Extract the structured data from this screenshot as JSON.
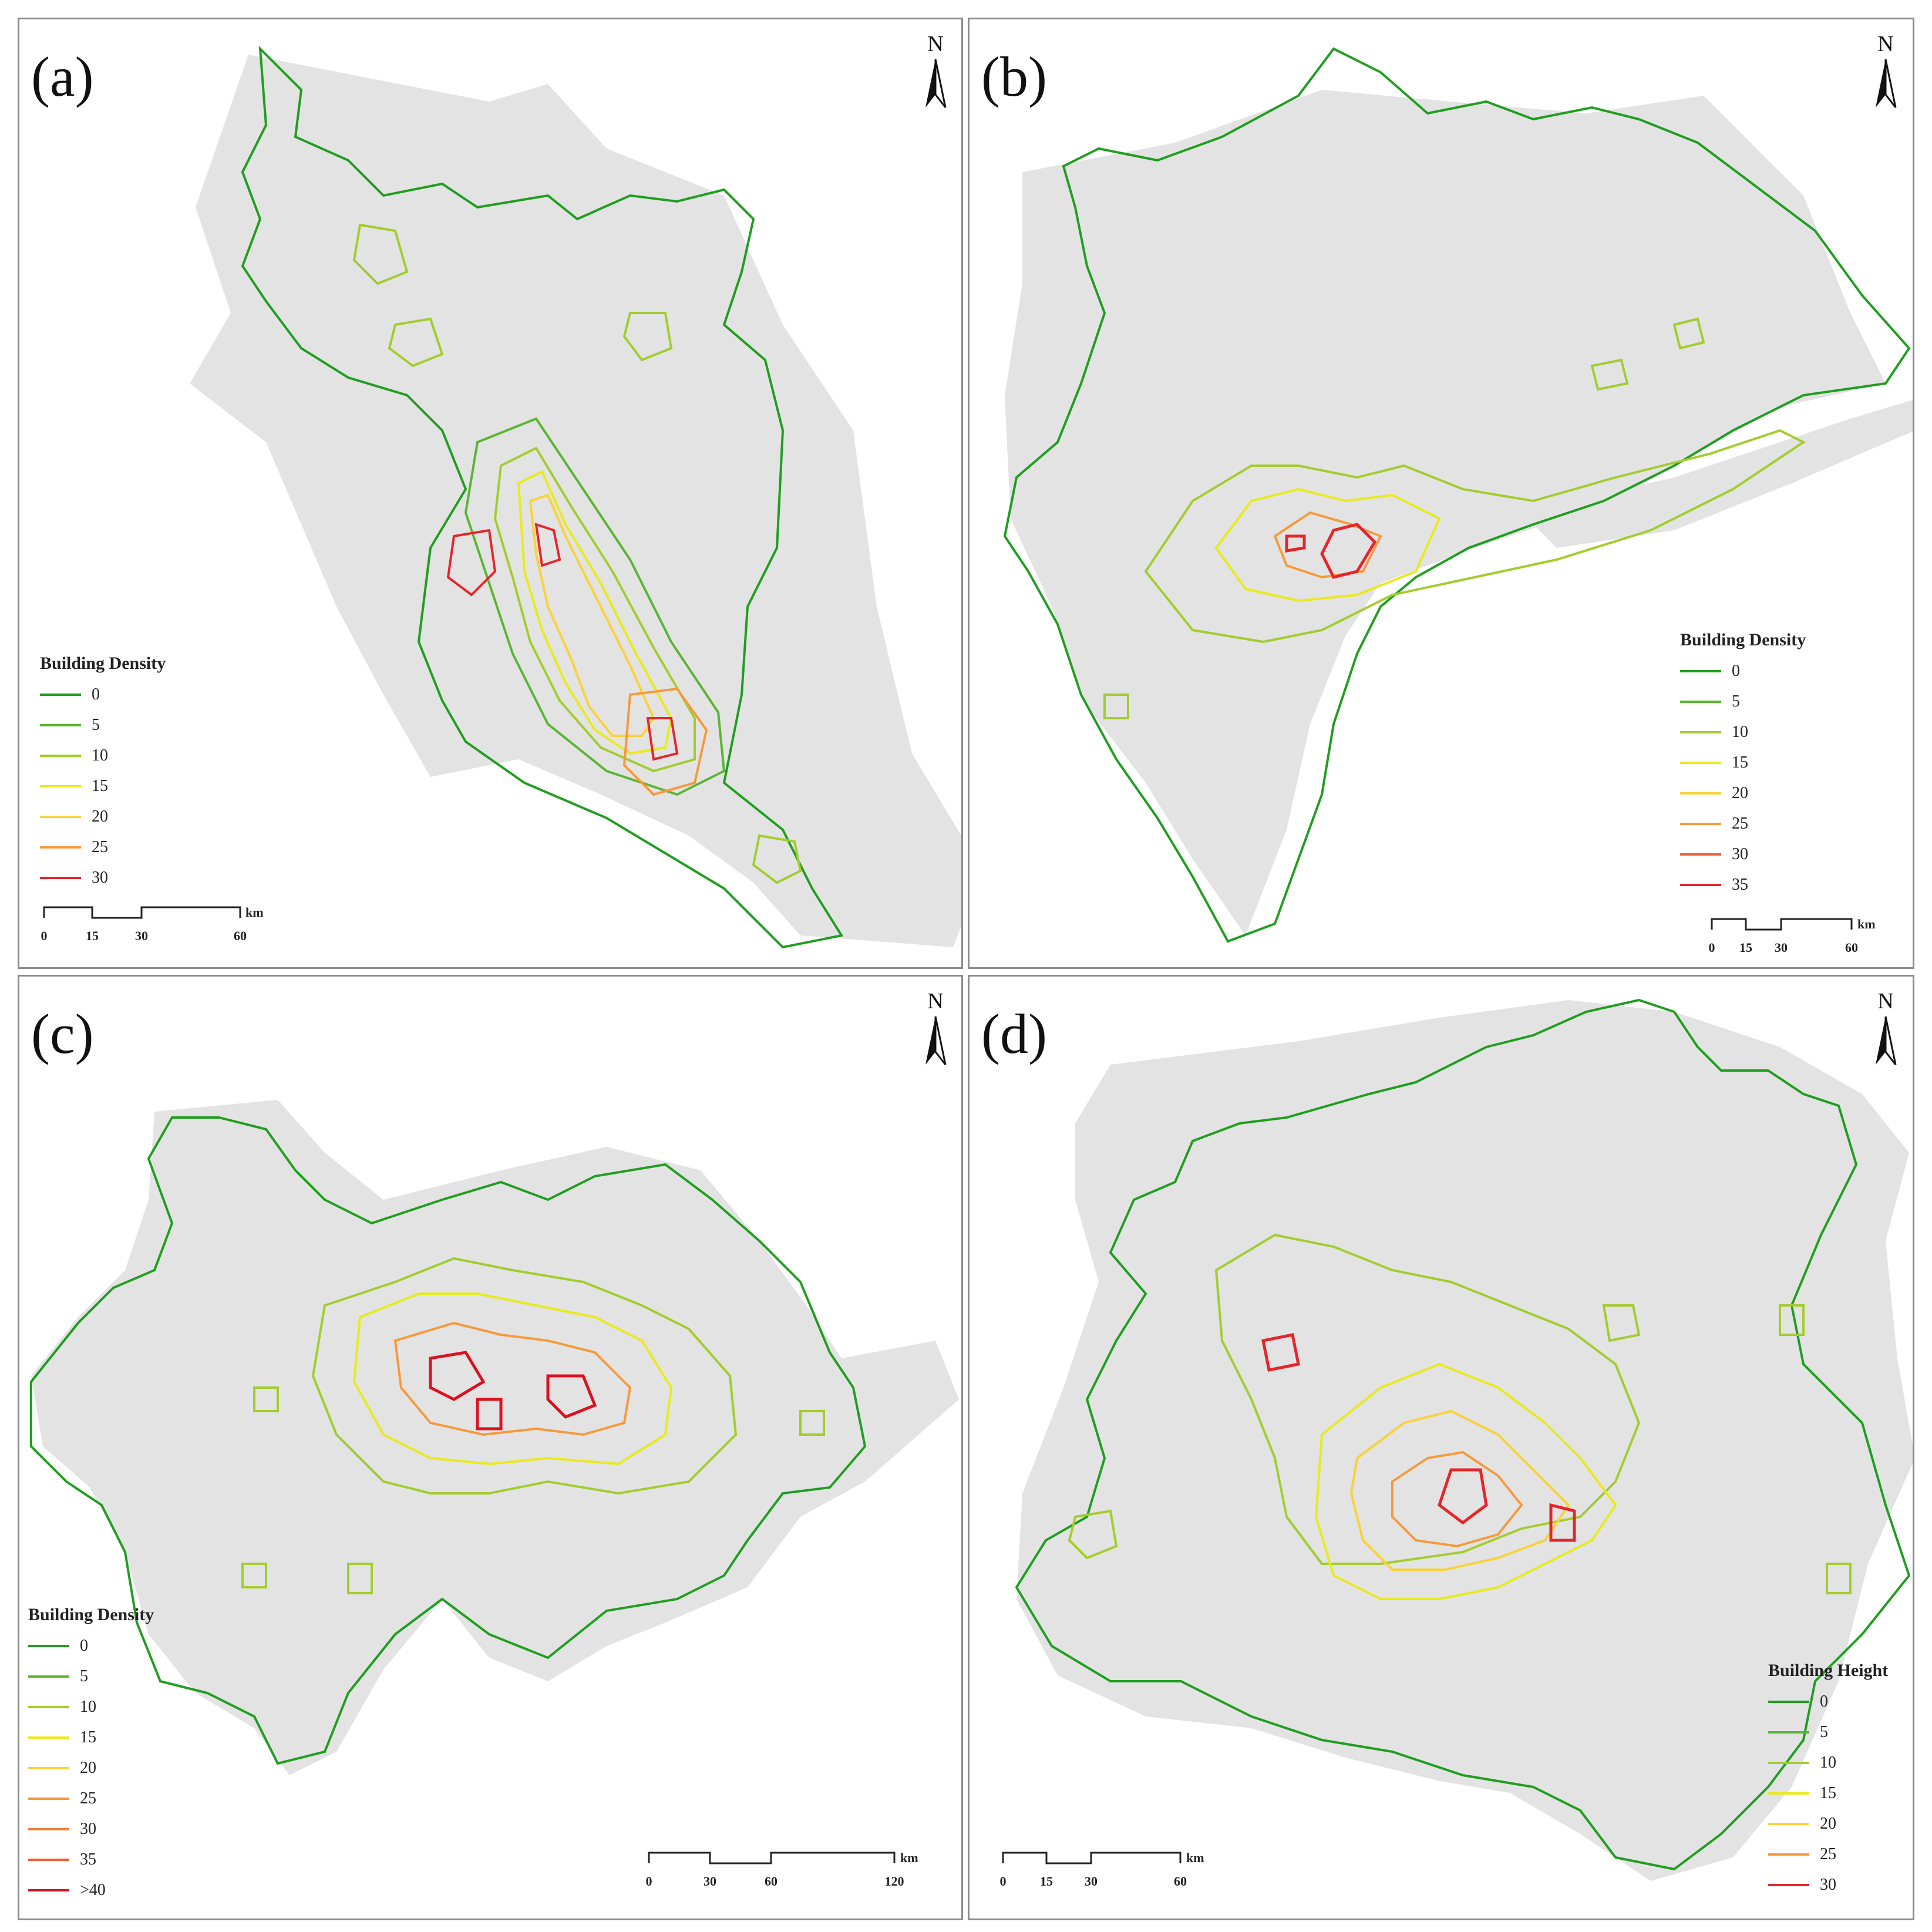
{
  "panels": [
    {
      "id": "a",
      "label": "(a)",
      "legend_title": "Building Density",
      "levels": [
        "0",
        "5",
        "10",
        "15",
        "20",
        "25",
        "30"
      ],
      "scale": {
        "ticks": [
          "0",
          "15",
          "30",
          "60"
        ],
        "unit": "km"
      },
      "north": "N"
    },
    {
      "id": "b",
      "label": "(b)",
      "legend_title": "Building Density",
      "levels": [
        "0",
        "5",
        "10",
        "15",
        "20",
        "25",
        "30",
        "35"
      ],
      "scale": {
        "ticks": [
          "0",
          "15",
          "30",
          "60"
        ],
        "unit": "km"
      },
      "north": "N"
    },
    {
      "id": "c",
      "label": "(c)",
      "legend_title": "Building Density",
      "levels": [
        "0",
        "5",
        "10",
        "15",
        "20",
        "25",
        "30",
        "35",
        ">40"
      ],
      "scale": {
        "ticks": [
          "0",
          "30",
          "60",
          "120"
        ],
        "unit": "km"
      },
      "north": "N"
    },
    {
      "id": "d",
      "label": "(d)",
      "legend_title": "Building Height",
      "levels": [
        "0",
        "5",
        "10",
        "15",
        "20",
        "25",
        "30"
      ],
      "scale": {
        "ticks": [
          "0",
          "15",
          "30",
          "60"
        ],
        "unit": "km"
      },
      "north": "N"
    }
  ],
  "colors": {
    "land": "#e3e3e3",
    "contour_ramp": [
      "#1f9e1f",
      "#5bb534",
      "#a3cc2e",
      "#e8ea1c",
      "#f7d23a",
      "#f59a3c",
      "#ef5f3a",
      "#e5252a",
      "#dd1020"
    ]
  }
}
